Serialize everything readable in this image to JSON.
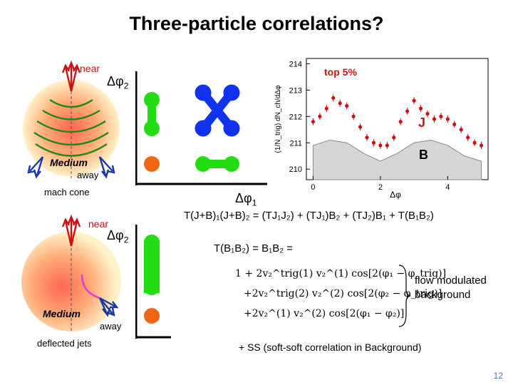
{
  "slide": {
    "title": "Three-particle correlations?",
    "page_number": "12"
  },
  "mach_cone": {
    "near": "near",
    "medium": "Medium",
    "away": "away",
    "caption": "mach cone"
  },
  "deflected": {
    "near": "near",
    "medium": "Medium",
    "away": "away",
    "caption": "deflected jets"
  },
  "axes": {
    "dphi2_top": "Δφ",
    "dphi2_top_sub": "2",
    "dphi1": "Δφ",
    "dphi1_sub": "1",
    "dphi2_bottom": "Δφ",
    "dphi2_bottom_sub": "2"
  },
  "colors": {
    "green": "#22dd11",
    "blue": "#1133ee",
    "orange": "#ee6611",
    "red_arrow": "#cc1111",
    "blue_arrow": "#1a3aa8",
    "jet_green": "#228811"
  },
  "chart_data": {
    "type": "scatter",
    "title": "top 5%",
    "ylabel": "(1/N_trig) dN_ch/dΔφ",
    "xlabel": "Δφ",
    "xlim": [
      -0.2,
      5.2
    ],
    "ylim": [
      209.6,
      214.2
    ],
    "yticks": [
      210,
      211,
      212,
      213,
      214
    ],
    "xticks": [
      0,
      2,
      4
    ],
    "annotations": [
      "J",
      "B"
    ],
    "series": [
      {
        "name": "J",
        "x": [
          0.0,
          0.2,
          0.4,
          0.6,
          0.8,
          1.0,
          1.2,
          1.4,
          1.6,
          1.8,
          2.0,
          2.2,
          2.4,
          2.6,
          2.8,
          3.0,
          3.2,
          3.4,
          3.6,
          3.8,
          4.0,
          4.2,
          4.4,
          4.6,
          4.8,
          5.0
        ],
        "y": [
          211.8,
          212.0,
          212.3,
          212.7,
          212.5,
          212.4,
          212.0,
          211.6,
          211.2,
          211.0,
          210.9,
          210.9,
          211.2,
          211.8,
          212.2,
          212.6,
          212.3,
          212.1,
          211.9,
          212.0,
          211.9,
          211.7,
          211.5,
          211.2,
          211.0,
          210.9
        ]
      },
      {
        "name": "B",
        "x": [
          0.0,
          0.5,
          1.0,
          1.5,
          2.0,
          2.5,
          3.0,
          3.5,
          4.0,
          4.5,
          5.0
        ],
        "y": [
          210.9,
          211.1,
          211.0,
          210.6,
          210.3,
          210.6,
          211.0,
          211.1,
          210.9,
          210.5,
          210.3
        ]
      }
    ]
  },
  "equations": {
    "line1": "T(J+B)₁(J+B)₂ = (TJ₁J₂) + (TJ₁)B₂ + (TJ₂)B₁ + T(B₁B₂)",
    "line2": "T(B₁B₂) = B₁B₂ =",
    "terms": [
      "1 + 2v₂^trig(1) v₂^(1) cos[2(φ₁ − φ_trig)]",
      "+2v₂^trig(2) v₂^(2) cos[2(φ₂ − φ_trig)]",
      "+2v₂^(1) v₂^(2) cos[2(φ₁ − φ₂)]"
    ],
    "flow_note": "flow modulated background",
    "ss_note": "+ SS (soft-soft correlation in Background)"
  }
}
